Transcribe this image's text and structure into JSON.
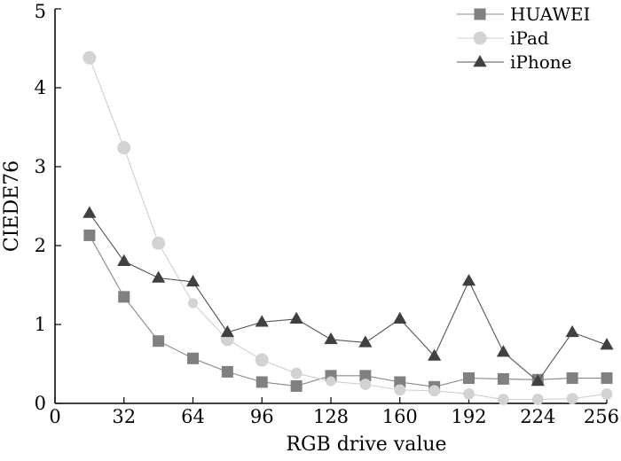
{
  "chart_data": {
    "type": "line",
    "title": "",
    "xlabel": "RGB drive value",
    "ylabel": "CIEDE76",
    "xlim": [
      0,
      256
    ],
    "ylim": [
      0,
      5
    ],
    "xticks": [
      0,
      32,
      64,
      96,
      128,
      160,
      192,
      224,
      256
    ],
    "yticks": [
      0,
      1,
      2,
      3,
      4,
      5
    ],
    "grid": false,
    "legend_position": "top-right",
    "series": [
      {
        "name": "HUAWEI",
        "marker": "square",
        "color": "#808080",
        "line_color": "#888888",
        "x": [
          16,
          32,
          48,
          64,
          80,
          96,
          112,
          128,
          144,
          160,
          176,
          192,
          208,
          224,
          240,
          256
        ],
        "y": [
          2.13,
          1.35,
          0.79,
          0.57,
          0.4,
          0.27,
          0.22,
          0.35,
          0.35,
          0.27,
          0.21,
          0.32,
          0.31,
          0.3,
          0.32,
          0.32
        ]
      },
      {
        "name": "iPad",
        "marker": "circle",
        "color": "#d3d3d3",
        "line_color": "#cfcfcf",
        "x": [
          16,
          32,
          48,
          64,
          80,
          96,
          112,
          128,
          144,
          160,
          176,
          192,
          208,
          224,
          240,
          256
        ],
        "y": [
          4.38,
          3.24,
          2.03,
          1.27,
          0.81,
          0.55,
          0.38,
          0.28,
          0.24,
          0.17,
          0.16,
          0.12,
          0.05,
          0.05,
          0.06,
          0.12
        ]
      },
      {
        "name": "iPhone",
        "marker": "triangle",
        "color": "#404040",
        "line_color": "#555555",
        "x": [
          16,
          32,
          48,
          64,
          80,
          96,
          112,
          128,
          144,
          160,
          176,
          192,
          208,
          224,
          240,
          256
        ],
        "y": [
          2.41,
          1.8,
          1.59,
          1.54,
          0.9,
          1.03,
          1.07,
          0.81,
          0.77,
          1.07,
          0.6,
          1.55,
          0.65,
          0.28,
          0.9,
          0.74
        ]
      }
    ]
  }
}
